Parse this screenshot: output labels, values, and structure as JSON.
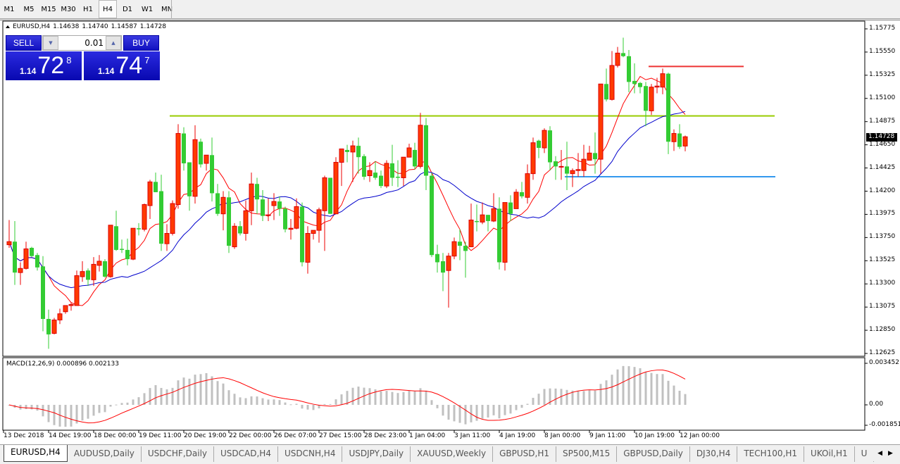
{
  "toolbar": {
    "timeframes": [
      "M1",
      "M5",
      "M15",
      "M30",
      "H1",
      "H4",
      "D1",
      "W1",
      "MN"
    ],
    "selected": "H4"
  },
  "chart": {
    "symbol": "EURUSD,H4",
    "open": "1.14638",
    "high": "1.14740",
    "low": "1.14587",
    "close": "1.14728",
    "current_price": "1.14728",
    "bull_color": "#ff3a00",
    "bear_color": "#33cc33",
    "fast_ma_color": "#ff0000",
    "slow_ma_color": "#0000cc",
    "price_ticks": [
      "1.15775",
      "1.15550",
      "1.15325",
      "1.15100",
      "1.14875",
      "1.14650",
      "1.14425",
      "1.14200",
      "1.13975",
      "1.13750",
      "1.13525",
      "1.13300",
      "1.13075",
      "1.12850",
      "1.12625"
    ],
    "date_labels": [
      "13 Dec 2018",
      "14 Dec 19:00",
      "18 Dec 00:00",
      "19 Dec 11:00",
      "20 Dec 19:00",
      "22 Dec 00:00",
      "26 Dec 07:00",
      "27 Dec 15:00",
      "28 Dec 23:00",
      "1 Jan 04:00",
      "3 Jan 11:00",
      "4 Jan 19:00",
      "8 Jan 00:00",
      "9 Jan 11:00",
      "10 Jan 19:00",
      "12 Jan 00:00"
    ],
    "hlines": [
      {
        "name": "green-level",
        "price": 1.1493,
        "color": "#99cc00"
      },
      {
        "name": "red-level",
        "price": 1.1541,
        "color": "#ee3333"
      },
      {
        "name": "blue-level",
        "price": 1.1434,
        "color": "#3399ee"
      }
    ],
    "ohlc": [
      [
        1.1368,
        1.1392,
        1.1365,
        1.1371
      ],
      [
        1.1371,
        1.1391,
        1.1329,
        1.1341
      ],
      [
        1.1341,
        1.1351,
        1.1329,
        1.1345
      ],
      [
        1.1345,
        1.1371,
        1.1344,
        1.1364
      ],
      [
        1.1365,
        1.1366,
        1.1356,
        1.1357
      ],
      [
        1.1358,
        1.136,
        1.1343,
        1.1346
      ],
      [
        1.1347,
        1.1357,
        1.1284,
        1.1296
      ],
      [
        1.1296,
        1.1305,
        1.1267,
        1.1281
      ],
      [
        1.1282,
        1.1297,
        1.1281,
        1.1295
      ],
      [
        1.1295,
        1.1306,
        1.1291,
        1.1301
      ],
      [
        1.1303,
        1.1309,
        1.1301,
        1.1309
      ],
      [
        1.1309,
        1.1312,
        1.1304,
        1.131
      ],
      [
        1.1309,
        1.1343,
        1.1309,
        1.1338
      ],
      [
        1.1337,
        1.1352,
        1.1332,
        1.1342
      ],
      [
        1.1343,
        1.1345,
        1.1328,
        1.1334
      ],
      [
        1.1334,
        1.1356,
        1.1328,
        1.1349
      ],
      [
        1.1348,
        1.1358,
        1.1342,
        1.1352
      ],
      [
        1.1352,
        1.1354,
        1.1336,
        1.1337
      ],
      [
        1.1337,
        1.1387,
        1.1336,
        1.1387
      ],
      [
        1.1386,
        1.1401,
        1.1362,
        1.1363
      ],
      [
        1.1364,
        1.1373,
        1.136,
        1.1363
      ],
      [
        1.1363,
        1.1374,
        1.1348,
        1.1354
      ],
      [
        1.1354,
        1.1384,
        1.1353,
        1.1384
      ],
      [
        1.1384,
        1.1389,
        1.1377,
        1.1383
      ],
      [
        1.1383,
        1.1408,
        1.1381,
        1.1407
      ],
      [
        1.1406,
        1.1431,
        1.1393,
        1.1429
      ],
      [
        1.1429,
        1.1438,
        1.1419,
        1.1419
      ],
      [
        1.142,
        1.1436,
        1.1362,
        1.1369
      ],
      [
        1.1369,
        1.1388,
        1.1362,
        1.1379
      ],
      [
        1.1379,
        1.1411,
        1.1377,
        1.1408
      ],
      [
        1.1407,
        1.1485,
        1.1403,
        1.1476
      ],
      [
        1.1476,
        1.1482,
        1.144,
        1.1447
      ],
      [
        1.1448,
        1.1448,
        1.1401,
        1.1415
      ],
      [
        1.1415,
        1.1484,
        1.1408,
        1.147
      ],
      [
        1.1468,
        1.1471,
        1.1443,
        1.1446
      ],
      [
        1.1447,
        1.1455,
        1.144,
        1.1455
      ],
      [
        1.1455,
        1.1472,
        1.141,
        1.1418
      ],
      [
        1.1418,
        1.1427,
        1.1396,
        1.1398
      ],
      [
        1.1398,
        1.142,
        1.1382,
        1.1414
      ],
      [
        1.1414,
        1.142,
        1.136,
        1.1367
      ],
      [
        1.1366,
        1.1389,
        1.1364,
        1.1386
      ],
      [
        1.1386,
        1.1391,
        1.1377,
        1.1379
      ],
      [
        1.1379,
        1.1411,
        1.1372,
        1.1401
      ],
      [
        1.1401,
        1.1438,
        1.1387,
        1.1427
      ],
      [
        1.1427,
        1.1433,
        1.1398,
        1.1412
      ],
      [
        1.1412,
        1.1421,
        1.1391,
        1.1396
      ],
      [
        1.1397,
        1.1413,
        1.1391,
        1.1397
      ],
      [
        1.1406,
        1.1418,
        1.1392,
        1.141
      ],
      [
        1.141,
        1.1415,
        1.1396,
        1.1403
      ],
      [
        1.1403,
        1.1405,
        1.138,
        1.1383
      ],
      [
        1.1383,
        1.1393,
        1.1373,
        1.1384
      ],
      [
        1.1384,
        1.1413,
        1.1383,
        1.1405
      ],
      [
        1.1405,
        1.1409,
        1.1347,
        1.1351
      ],
      [
        1.1351,
        1.1386,
        1.134,
        1.1379
      ],
      [
        1.1379,
        1.1382,
        1.1373,
        1.1382
      ],
      [
        1.1382,
        1.1404,
        1.137,
        1.1402
      ],
      [
        1.1401,
        1.1435,
        1.1362,
        1.1433
      ],
      [
        1.1433,
        1.1433,
        1.1398,
        1.1398
      ],
      [
        1.1398,
        1.1453,
        1.1398,
        1.1448
      ],
      [
        1.1448,
        1.1461,
        1.1425,
        1.1461
      ],
      [
        1.146,
        1.1465,
        1.1448,
        1.1458
      ],
      [
        1.1458,
        1.1469,
        1.1429,
        1.1464
      ],
      [
        1.1464,
        1.1472,
        1.1437,
        1.1453
      ],
      [
        1.1454,
        1.1456,
        1.1431,
        1.1434
      ],
      [
        1.1435,
        1.1448,
        1.1429,
        1.144
      ],
      [
        1.1438,
        1.1449,
        1.1431,
        1.1433
      ],
      [
        1.1435,
        1.144,
        1.1423,
        1.1425
      ],
      [
        1.1425,
        1.145,
        1.1423,
        1.1447
      ],
      [
        1.1447,
        1.1465,
        1.1425,
        1.1433
      ],
      [
        1.1434,
        1.145,
        1.1424,
        1.1433
      ],
      [
        1.1433,
        1.1453,
        1.1425,
        1.1453
      ],
      [
        1.1453,
        1.1466,
        1.1453,
        1.1462
      ],
      [
        1.146,
        1.1467,
        1.1441,
        1.1444
      ],
      [
        1.1444,
        1.1496,
        1.1442,
        1.1484
      ],
      [
        1.1484,
        1.1491,
        1.1421,
        1.1435
      ],
      [
        1.1435,
        1.1438,
        1.1356,
        1.1358
      ],
      [
        1.1359,
        1.1368,
        1.1341,
        1.1351
      ],
      [
        1.1352,
        1.136,
        1.1323,
        1.1341
      ],
      [
        1.1343,
        1.136,
        1.1307,
        1.1357
      ],
      [
        1.1357,
        1.1375,
        1.1354,
        1.1371
      ],
      [
        1.1371,
        1.1383,
        1.1353,
        1.1367
      ],
      [
        1.1367,
        1.1371,
        1.1336,
        1.1362
      ],
      [
        1.1366,
        1.1408,
        1.1366,
        1.1392
      ],
      [
        1.1391,
        1.1407,
        1.1381,
        1.139
      ],
      [
        1.139,
        1.1409,
        1.1388,
        1.1397
      ],
      [
        1.1397,
        1.1397,
        1.1381,
        1.1391
      ],
      [
        1.1391,
        1.1418,
        1.139,
        1.1403
      ],
      [
        1.1403,
        1.1414,
        1.1344,
        1.1351
      ],
      [
        1.1351,
        1.1409,
        1.1343,
        1.1409
      ],
      [
        1.1409,
        1.1416,
        1.1391,
        1.1398
      ],
      [
        1.1403,
        1.1422,
        1.1403,
        1.1419
      ],
      [
        1.1419,
        1.1429,
        1.1413,
        1.1415
      ],
      [
        1.1414,
        1.1446,
        1.1408,
        1.1437
      ],
      [
        1.1437,
        1.1472,
        1.1431,
        1.1467
      ],
      [
        1.1469,
        1.147,
        1.1452,
        1.1462
      ],
      [
        1.1462,
        1.1481,
        1.1457,
        1.1479
      ],
      [
        1.1479,
        1.1483,
        1.144,
        1.1448
      ],
      [
        1.1449,
        1.1454,
        1.1431,
        1.1444
      ],
      [
        1.1444,
        1.146,
        1.1431,
        1.1444
      ],
      [
        1.1444,
        1.1468,
        1.1421,
        1.1437
      ],
      [
        1.1437,
        1.1442,
        1.1424,
        1.144
      ],
      [
        1.144,
        1.1457,
        1.1434,
        1.1441
      ],
      [
        1.144,
        1.1465,
        1.1434,
        1.1451
      ],
      [
        1.145,
        1.1464,
        1.145,
        1.1457
      ],
      [
        1.1457,
        1.1477,
        1.1437,
        1.1451
      ],
      [
        1.1451,
        1.1524,
        1.1437,
        1.1524
      ],
      [
        1.1524,
        1.1539,
        1.1507,
        1.1509
      ],
      [
        1.1509,
        1.1556,
        1.1508,
        1.1542
      ],
      [
        1.1542,
        1.156,
        1.154,
        1.1554
      ],
      [
        1.1554,
        1.1569,
        1.155,
        1.1551
      ],
      [
        1.1551,
        1.1557,
        1.1516,
        1.1526
      ],
      [
        1.1527,
        1.1544,
        1.1515,
        1.1524
      ],
      [
        1.1525,
        1.1526,
        1.1515,
        1.1521
      ],
      [
        1.1522,
        1.1526,
        1.1483,
        1.1498
      ],
      [
        1.1498,
        1.1524,
        1.1494,
        1.1521
      ],
      [
        1.1521,
        1.153,
        1.1515,
        1.1522
      ],
      [
        1.1521,
        1.1539,
        1.1514,
        1.1534
      ],
      [
        1.1534,
        1.1535,
        1.1456,
        1.1468
      ],
      [
        1.1468,
        1.148,
        1.1459,
        1.1476
      ],
      [
        1.1476,
        1.1485,
        1.1461,
        1.1463
      ],
      [
        1.14638,
        1.1474,
        1.14587,
        1.14728
      ]
    ]
  },
  "trade_panel": {
    "sell_label": "SELL",
    "buy_label": "BUY",
    "lot": "0.01",
    "sell_small": "1.14",
    "sell_big": "72",
    "sell_sup": "8",
    "buy_small": "1.14",
    "buy_big": "74",
    "buy_sup": "7"
  },
  "macd": {
    "label": "MACD(12,26,9) 0.000896 0.002133",
    "max_label": "0.003452",
    "zero_label": "0.00",
    "min_label": "-0.001851",
    "max": 0.003452,
    "min": -0.001851,
    "hist_color": "#c0c0c0",
    "signal_color": "#ff0000"
  },
  "tabs": [
    "EURUSD,H4",
    "AUDUSD,Daily",
    "USDCHF,Daily",
    "USDCAD,H4",
    "USDCNH,H4",
    "USDJPY,Daily",
    "XAUUSD,Weekly",
    "GBPUSD,H1",
    "SP500,M15",
    "GBPUSD,Daily",
    "DJ30,H4",
    "TECH100,H1",
    "UKOil,H1",
    "U"
  ],
  "active_tab": "EURUSD,H4"
}
